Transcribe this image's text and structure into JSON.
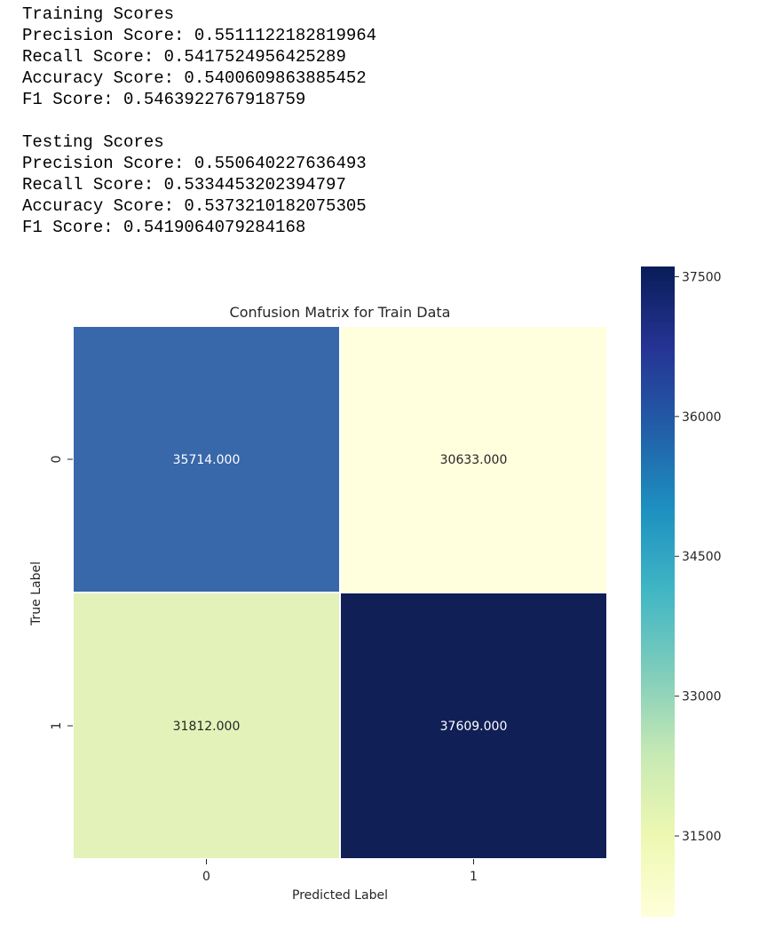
{
  "output": {
    "training_header": "Training Scores",
    "training": [
      "Precision Score: 0.5511122182819964",
      "Recall Score: 0.5417524956425289",
      "Accuracy Score: 0.5400609863885452",
      "F1 Score: 0.5463922767918759"
    ],
    "testing_header": "Testing Scores",
    "testing": [
      "Precision Score: 0.550640227636493",
      "Recall Score: 0.5334453202394797",
      "Accuracy Score: 0.5373210182075305",
      "F1 Score: 0.5419064079284168"
    ]
  },
  "chart_data": {
    "type": "heatmap",
    "title": "Confusion Matrix for Train Data",
    "xlabel": "Predicted Label",
    "ylabel": "True Label",
    "x_ticks": [
      "0",
      "1"
    ],
    "y_ticks": [
      "0",
      "1"
    ],
    "values": [
      [
        35714,
        30633
      ],
      [
        31812,
        37609
      ]
    ],
    "annotations": [
      [
        "35714.000",
        "30633.000"
      ],
      [
        "31812.000",
        "37609.000"
      ]
    ],
    "colormap": "YlGnBu",
    "colorbar": {
      "range": [
        30633,
        37609
      ],
      "ticks": [
        31500,
        33000,
        34500,
        36000,
        37500
      ],
      "tick_labels": [
        "31500",
        "33000",
        "34500",
        "36000",
        "37500"
      ]
    },
    "colors": {
      "cell_00": "#3867aa",
      "cell_01": "#ffffdd",
      "cell_10": "#e3f2b8",
      "cell_11": "#101f56",
      "annotation_text": "#ffffff",
      "grid_line": "#ffffff"
    }
  }
}
